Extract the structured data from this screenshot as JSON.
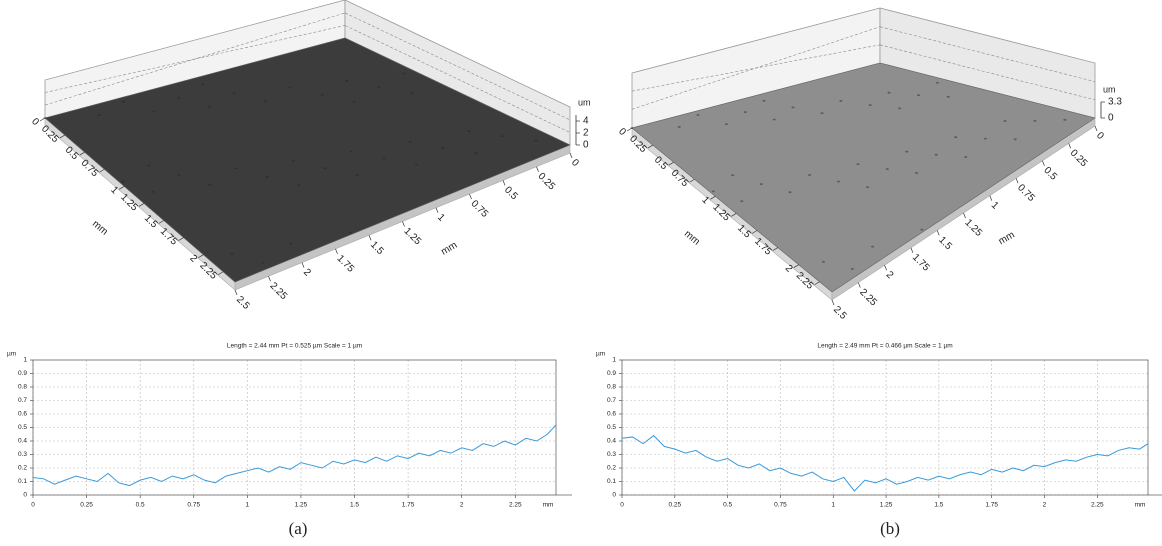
{
  "chart_data": [
    {
      "type": "surface3d",
      "xlabel": "mm",
      "ylabel": "mm",
      "zlabel": "um",
      "xlim": [
        0,
        2.5
      ],
      "xticks": [
        0,
        0.25,
        0.5,
        0.75,
        1,
        1.25,
        1.5,
        1.75,
        2,
        2.25,
        2.5
      ],
      "ylim": [
        0,
        2.4
      ],
      "yticks": [
        0,
        0.25,
        0.5,
        0.75,
        1,
        1.25,
        1.5,
        1.75,
        2,
        2.25
      ],
      "zlim": [
        0,
        5
      ],
      "zticks": [
        0,
        2,
        4
      ],
      "color": "#3c3c3c"
    },
    {
      "type": "surface3d",
      "xlabel": "mm",
      "ylabel": "mm",
      "zlabel": "um",
      "xlim": [
        0,
        2.5
      ],
      "xticks": [
        0,
        0.25,
        0.5,
        0.75,
        1,
        1.25,
        1.5,
        1.75,
        2,
        2.25,
        2.5
      ],
      "ylim": [
        0,
        2.4
      ],
      "yticks": [
        0,
        0.25,
        0.5,
        0.75,
        1,
        1.25,
        1.5,
        1.75,
        2,
        2.25
      ],
      "zlim": [
        0,
        3.3
      ],
      "zticks": [
        0,
        3.3
      ],
      "color": "#8e8e8e"
    },
    {
      "type": "line",
      "title": "Length = 2.44 mm  Pt = 0.525 µm  Scale = 1 µm",
      "ylabel": "µm",
      "xlabel": "mm",
      "caption": "(a)",
      "xlim": [
        0,
        2.44
      ],
      "xticks": [
        0,
        0.25,
        0.5,
        0.75,
        1,
        1.25,
        1.5,
        1.75,
        2,
        2.25
      ],
      "ylim": [
        0,
        1
      ],
      "yticks": [
        0,
        0.1,
        0.2,
        0.3,
        0.4,
        0.5,
        0.6,
        0.7,
        0.8,
        0.9,
        1
      ],
      "grid": true,
      "series": [
        {
          "color": "#3a9ad9",
          "x": [
            0,
            0.05,
            0.1,
            0.15,
            0.2,
            0.25,
            0.3,
            0.35,
            0.4,
            0.45,
            0.5,
            0.55,
            0.6,
            0.65,
            0.7,
            0.75,
            0.8,
            0.85,
            0.9,
            0.95,
            1,
            1.05,
            1.1,
            1.15,
            1.2,
            1.25,
            1.3,
            1.35,
            1.4,
            1.45,
            1.5,
            1.55,
            1.6,
            1.65,
            1.7,
            1.75,
            1.8,
            1.85,
            1.9,
            1.95,
            2,
            2.05,
            2.1,
            2.15,
            2.2,
            2.25,
            2.3,
            2.35,
            2.4,
            2.44
          ],
          "values": [
            0.13,
            0.12,
            0.08,
            0.11,
            0.14,
            0.12,
            0.1,
            0.16,
            0.09,
            0.07,
            0.11,
            0.13,
            0.1,
            0.14,
            0.12,
            0.15,
            0.11,
            0.09,
            0.14,
            0.16,
            0.18,
            0.2,
            0.17,
            0.21,
            0.19,
            0.24,
            0.22,
            0.2,
            0.25,
            0.23,
            0.26,
            0.24,
            0.28,
            0.25,
            0.29,
            0.27,
            0.31,
            0.29,
            0.33,
            0.31,
            0.35,
            0.33,
            0.38,
            0.36,
            0.4,
            0.37,
            0.42,
            0.4,
            0.45,
            0.52
          ]
        }
      ]
    },
    {
      "type": "line",
      "title": "Length = 2.49 mm  Pt = 0.466 µm  Scale = 1 µm",
      "ylabel": "µm",
      "xlabel": "mm",
      "caption": "(b)",
      "xlim": [
        0,
        2.49
      ],
      "xticks": [
        0,
        0.25,
        0.5,
        0.75,
        1,
        1.25,
        1.5,
        1.75,
        2,
        2.25
      ],
      "ylim": [
        0,
        1
      ],
      "yticks": [
        0,
        0.1,
        0.2,
        0.3,
        0.4,
        0.5,
        0.6,
        0.7,
        0.8,
        0.9,
        1
      ],
      "grid": true,
      "series": [
        {
          "color": "#3a9ad9",
          "x": [
            0,
            0.05,
            0.1,
            0.15,
            0.2,
            0.25,
            0.3,
            0.35,
            0.4,
            0.45,
            0.5,
            0.55,
            0.6,
            0.65,
            0.7,
            0.75,
            0.8,
            0.85,
            0.9,
            0.95,
            1,
            1.05,
            1.1,
            1.15,
            1.2,
            1.25,
            1.3,
            1.35,
            1.4,
            1.45,
            1.5,
            1.55,
            1.6,
            1.65,
            1.7,
            1.75,
            1.8,
            1.85,
            1.9,
            1.95,
            2,
            2.05,
            2.1,
            2.15,
            2.2,
            2.25,
            2.3,
            2.35,
            2.4,
            2.45,
            2.49
          ],
          "values": [
            0.42,
            0.43,
            0.38,
            0.44,
            0.36,
            0.34,
            0.31,
            0.33,
            0.28,
            0.25,
            0.27,
            0.22,
            0.2,
            0.23,
            0.18,
            0.2,
            0.16,
            0.14,
            0.17,
            0.12,
            0.1,
            0.13,
            0.03,
            0.11,
            0.09,
            0.12,
            0.08,
            0.1,
            0.13,
            0.11,
            0.14,
            0.12,
            0.15,
            0.17,
            0.15,
            0.19,
            0.17,
            0.2,
            0.18,
            0.22,
            0.21,
            0.24,
            0.26,
            0.25,
            0.28,
            0.3,
            0.29,
            0.33,
            0.35,
            0.34,
            0.38
          ]
        }
      ]
    }
  ]
}
